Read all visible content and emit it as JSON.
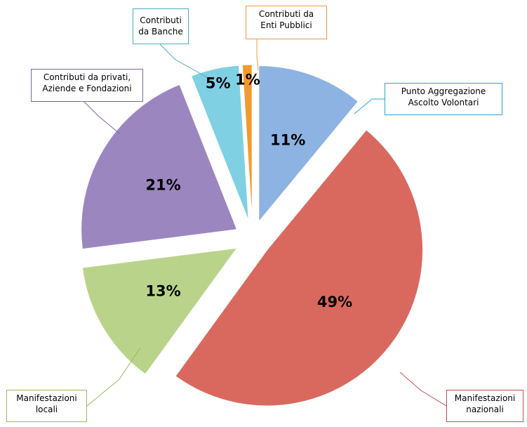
{
  "chart_data": {
    "type": "pie",
    "categories": [
      "Punto Aggregazione\nAscolto Volontari",
      "Manifestazioni\nnazionali",
      "Manifestazioni\nlocali",
      "Contributi da privati,\nAziende e Fondazioni",
      "Contributi\nda Banche",
      "Contributi da\nEnti Pubblici"
    ],
    "values": [
      11,
      49,
      13,
      21,
      5,
      1
    ],
    "value_labels": [
      "11%",
      "49%",
      "13%",
      "21%",
      "5%",
      "1%"
    ],
    "colors": [
      "#8db3e2",
      "#d9695f",
      "#b9d48a",
      "#9c86c0",
      "#7fd0e3",
      "#f39a2e"
    ]
  }
}
